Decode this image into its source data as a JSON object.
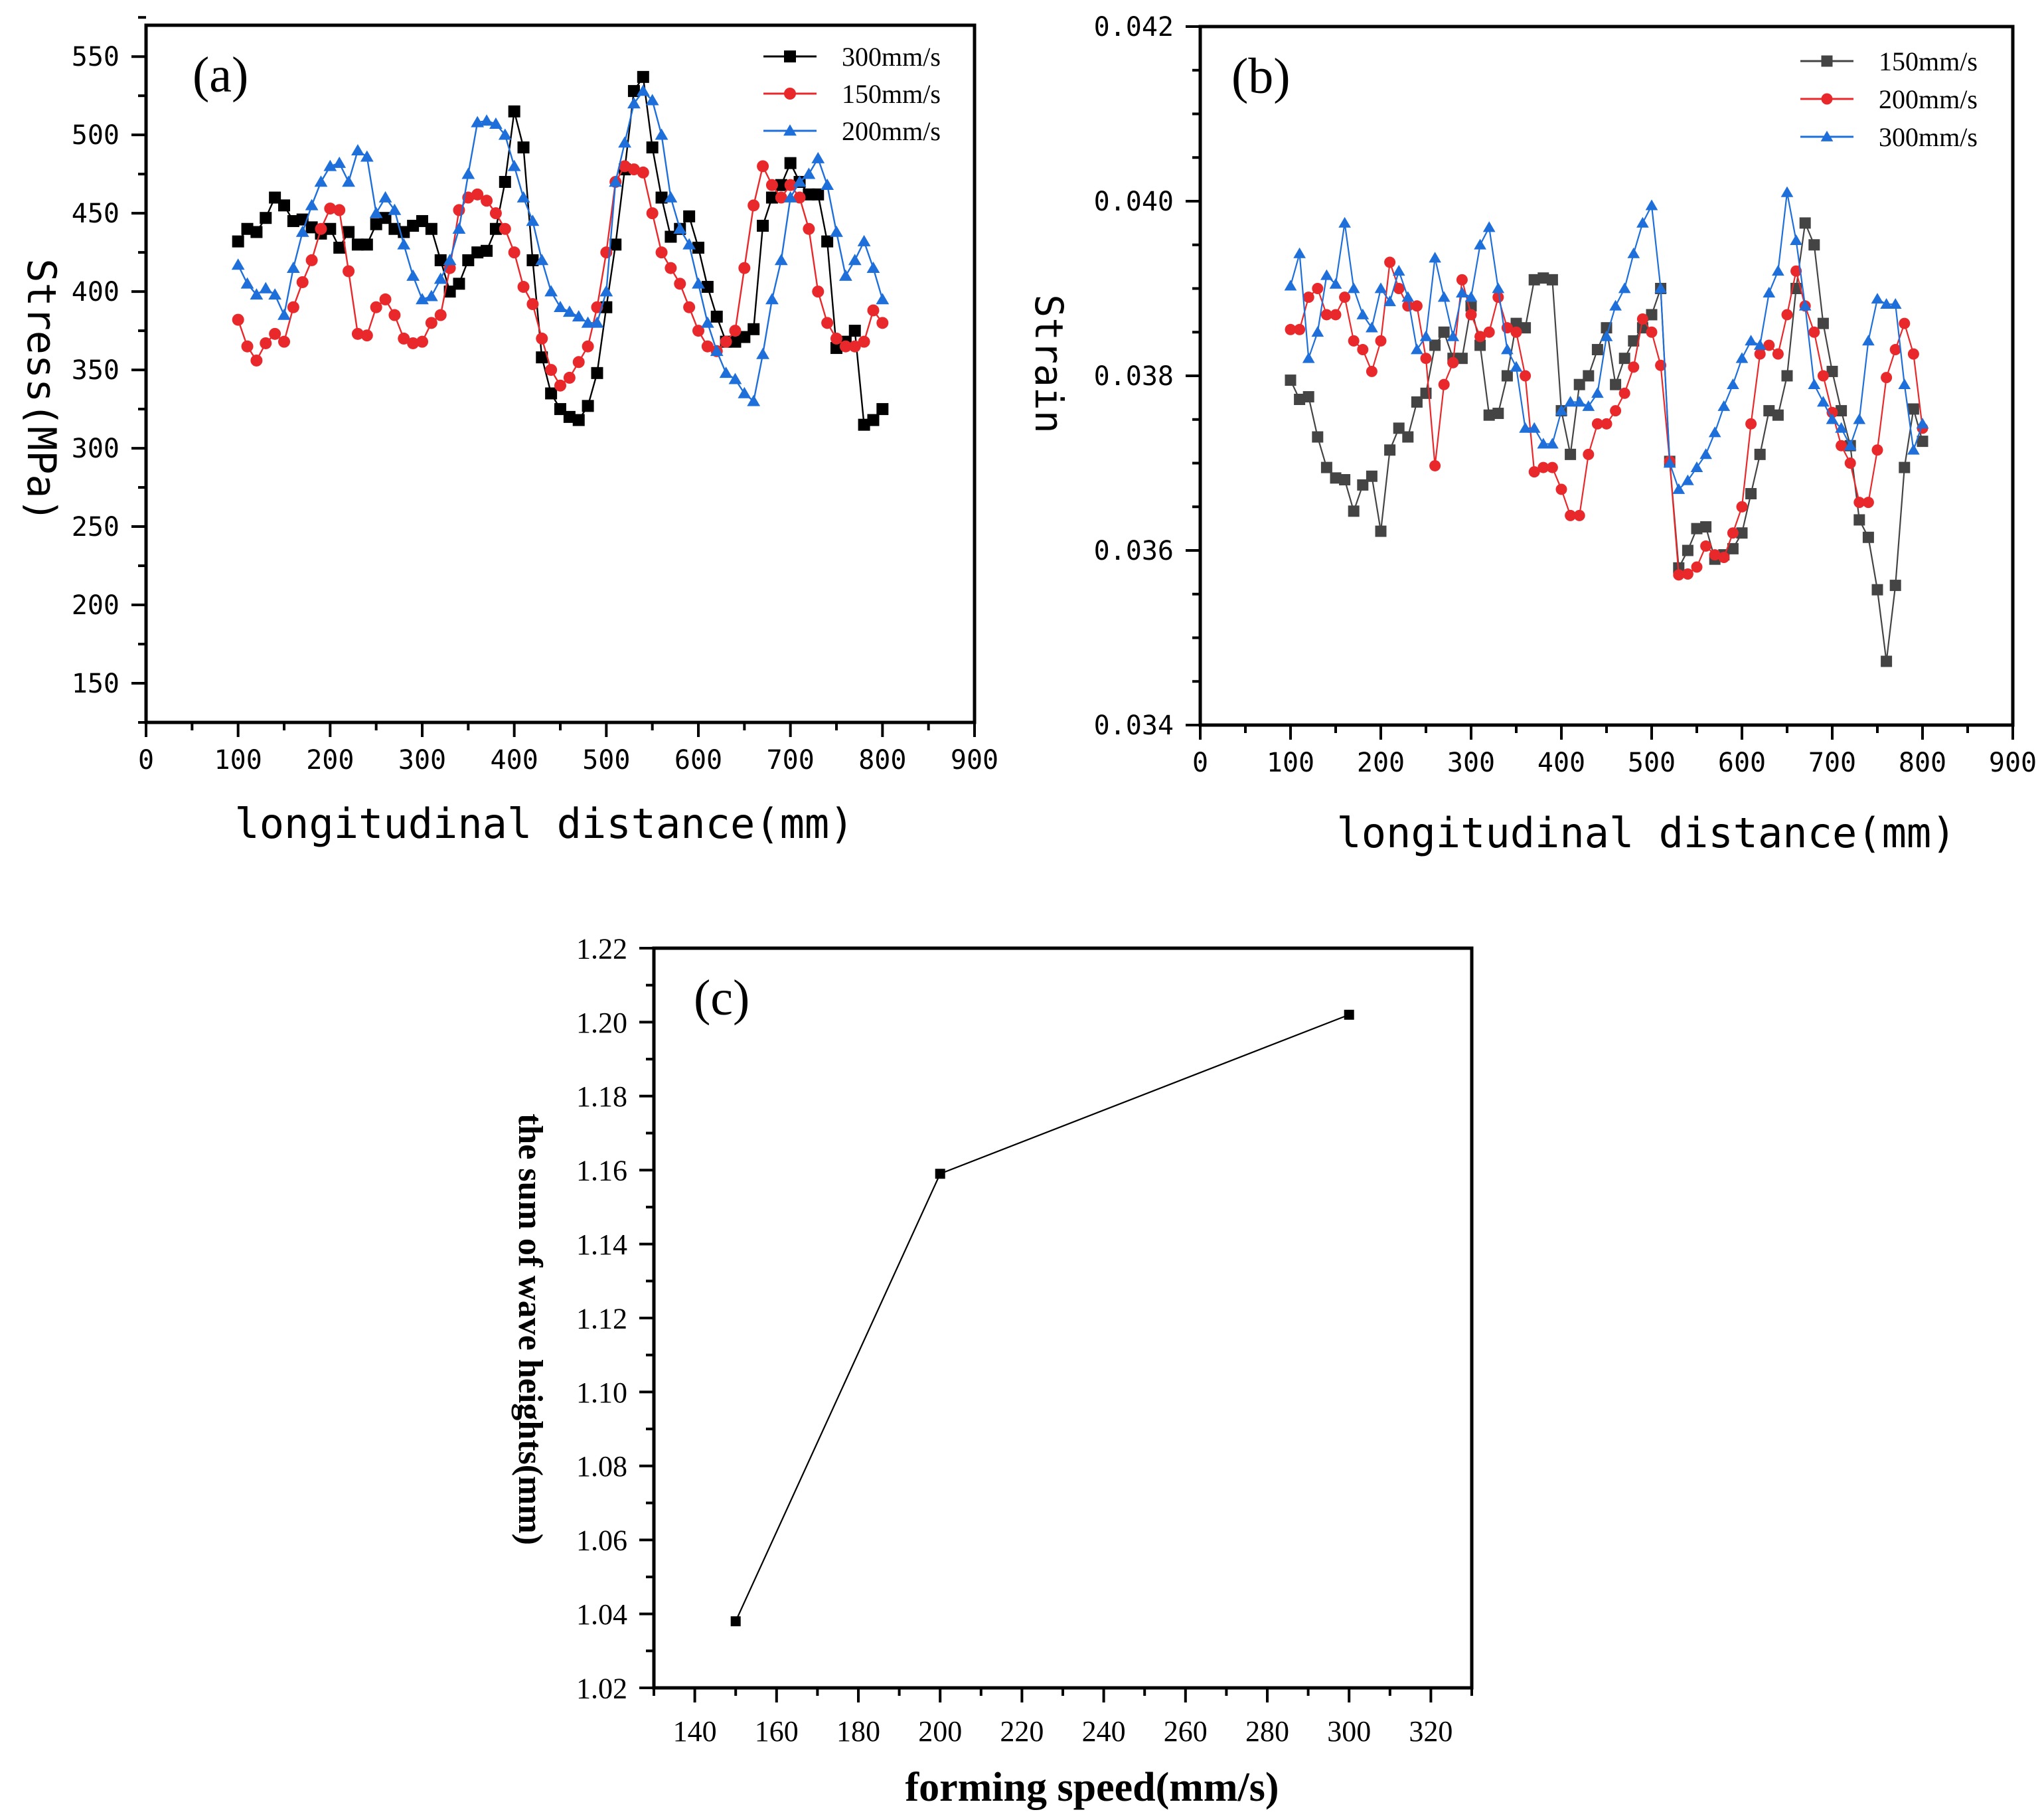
{
  "chart_data": [
    {
      "id": "a",
      "type": "line",
      "panel_label": "(a)",
      "title": "",
      "xlabel": "longitudinal distance(mm)",
      "ylabel": "Stress(MPa)",
      "xlim": [
        0,
        900
      ],
      "ylim": [
        125,
        570
      ],
      "x_ticks": [
        "0",
        "100",
        "200",
        "300",
        "400",
        "500",
        "600",
        "700",
        "800",
        "900"
      ],
      "y_ticks": [
        "150",
        "200",
        "250",
        "300",
        "350",
        "400",
        "450",
        "500",
        "550"
      ],
      "legend_position": "top-right",
      "x": [
        100,
        110,
        120,
        130,
        140,
        150,
        160,
        170,
        180,
        190,
        200,
        210,
        220,
        230,
        240,
        250,
        260,
        270,
        280,
        290,
        300,
        310,
        320,
        330,
        340,
        350,
        360,
        370,
        380,
        390,
        400,
        410,
        420,
        430,
        440,
        450,
        460,
        470,
        480,
        490,
        500,
        510,
        520,
        530,
        540,
        550,
        560,
        570,
        580,
        590,
        600,
        610,
        620,
        630,
        640,
        650,
        660,
        670,
        680,
        690,
        700,
        710,
        720,
        730,
        740,
        750,
        760,
        770,
        780,
        790,
        800
      ],
      "series": [
        {
          "name": "300mm/s",
          "color": "#000000",
          "marker": "square",
          "values": [
            432,
            440,
            438,
            447,
            460,
            455,
            445,
            446,
            441,
            437,
            440,
            428,
            438,
            430,
            430,
            443,
            447,
            440,
            438,
            442,
            445,
            440,
            420,
            400,
            405,
            420,
            425,
            426,
            440,
            470,
            515,
            492,
            420,
            358,
            335,
            325,
            320,
            318,
            327,
            348,
            390,
            430,
            478,
            528,
            537,
            492,
            460,
            435,
            440,
            448,
            428,
            403,
            384,
            368,
            368,
            371,
            376,
            442,
            460,
            468,
            482,
            470,
            462,
            462,
            432,
            364,
            368,
            375,
            315,
            318,
            325
          ]
        },
        {
          "name": "150mm/s",
          "color": "#e8282a",
          "marker": "circle",
          "values": [
            382,
            365,
            356,
            367,
            373,
            368,
            390,
            406,
            420,
            440,
            453,
            452,
            413,
            373,
            372,
            390,
            395,
            385,
            370,
            367,
            368,
            380,
            385,
            415,
            452,
            460,
            462,
            458,
            450,
            440,
            425,
            403,
            392,
            370,
            350,
            340,
            345,
            355,
            365,
            390,
            425,
            470,
            480,
            478,
            476,
            450,
            425,
            415,
            405,
            390,
            375,
            365,
            362,
            368,
            375,
            415,
            455,
            480,
            468,
            460,
            468,
            460,
            440,
            400,
            380,
            370,
            365,
            365,
            368,
            388,
            380
          ]
        },
        {
          "name": "200mm/s",
          "color": "#1e6fd9",
          "marker": "triangle",
          "values": [
            417,
            405,
            398,
            402,
            398,
            385,
            415,
            438,
            455,
            470,
            480,
            482,
            470,
            490,
            486,
            450,
            460,
            452,
            430,
            410,
            395,
            397,
            408,
            420,
            440,
            475,
            508,
            509,
            507,
            500,
            480,
            460,
            445,
            420,
            400,
            390,
            387,
            384,
            380,
            380,
            400,
            470,
            495,
            520,
            528,
            522,
            500,
            460,
            440,
            430,
            405,
            380,
            362,
            348,
            344,
            335,
            330,
            360,
            395,
            420,
            460,
            470,
            475,
            485,
            468,
            438,
            410,
            420,
            432,
            415,
            395
          ]
        }
      ]
    },
    {
      "id": "b",
      "type": "line",
      "panel_label": "(b)",
      "title": "",
      "xlabel": "longitudinal distance(mm)",
      "ylabel": "Strain",
      "xlim": [
        0,
        900
      ],
      "ylim": [
        0.034,
        0.042
      ],
      "x_ticks": [
        "0",
        "100",
        "200",
        "300",
        "400",
        "500",
        "600",
        "700",
        "800",
        "900"
      ],
      "y_ticks": [
        "0.034",
        "0.036",
        "0.038",
        "0.040",
        "0.042"
      ],
      "legend_position": "top-right",
      "x": [
        100,
        110,
        120,
        130,
        140,
        150,
        160,
        170,
        180,
        190,
        200,
        210,
        220,
        230,
        240,
        250,
        260,
        270,
        280,
        290,
        300,
        310,
        320,
        330,
        340,
        350,
        360,
        370,
        380,
        390,
        400,
        410,
        420,
        430,
        440,
        450,
        460,
        470,
        480,
        490,
        500,
        510,
        520,
        530,
        540,
        550,
        560,
        570,
        580,
        590,
        600,
        610,
        620,
        630,
        640,
        650,
        660,
        670,
        680,
        690,
        700,
        710,
        720,
        730,
        740,
        750,
        760,
        770,
        780,
        790,
        800
      ],
      "series": [
        {
          "name": "150mm/s",
          "color": "#444444",
          "marker": "square",
          "values": [
            0.03795,
            0.03773,
            0.03776,
            0.0373,
            0.03695,
            0.03683,
            0.03681,
            0.03645,
            0.03675,
            0.03685,
            0.03622,
            0.03715,
            0.0374,
            0.0373,
            0.0377,
            0.0378,
            0.03835,
            0.0385,
            0.0382,
            0.0382,
            0.0388,
            0.03835,
            0.03755,
            0.03757,
            0.038,
            0.0386,
            0.03855,
            0.0391,
            0.03912,
            0.0391,
            0.0376,
            0.0371,
            0.0379,
            0.038,
            0.0383,
            0.03855,
            0.0379,
            0.0382,
            0.0384,
            0.03855,
            0.0387,
            0.039,
            0.03702,
            0.0358,
            0.036,
            0.03625,
            0.03627,
            0.0359,
            0.03595,
            0.03602,
            0.0362,
            0.03665,
            0.0371,
            0.0376,
            0.03755,
            0.038,
            0.039,
            0.03975,
            0.0395,
            0.0386,
            0.03805,
            0.0376,
            0.0372,
            0.03635,
            0.03615,
            0.03555,
            0.03473,
            0.0356,
            0.03695,
            0.03762,
            0.03725
          ]
        },
        {
          "name": "200mm/s",
          "color": "#e8282a",
          "marker": "circle",
          "values": [
            0.03853,
            0.03853,
            0.0389,
            0.039,
            0.0387,
            0.0387,
            0.0389,
            0.0384,
            0.0383,
            0.03805,
            0.0384,
            0.0393,
            0.039,
            0.0388,
            0.0388,
            0.0382,
            0.03697,
            0.0379,
            0.03815,
            0.0391,
            0.0387,
            0.03845,
            0.0385,
            0.0389,
            0.03855,
            0.0385,
            0.038,
            0.0369,
            0.03695,
            0.03695,
            0.0367,
            0.0364,
            0.0364,
            0.0371,
            0.03745,
            0.03745,
            0.0376,
            0.0378,
            0.0381,
            0.03865,
            0.0385,
            0.03812,
            0.03702,
            0.03572,
            0.03573,
            0.03581,
            0.03605,
            0.03595,
            0.03592,
            0.0362,
            0.0365,
            0.03745,
            0.03825,
            0.03835,
            0.03825,
            0.0387,
            0.0392,
            0.0388,
            0.0385,
            0.038,
            0.03758,
            0.0372,
            0.037,
            0.03655,
            0.03655,
            0.03715,
            0.03798,
            0.0383,
            0.0386,
            0.03825,
            0.0374
          ]
        },
        {
          "name": "300mm/s",
          "color": "#1e6fd9",
          "marker": "triangle",
          "values": [
            0.03903,
            0.0394,
            0.0382,
            0.0385,
            0.03915,
            0.03905,
            0.03975,
            0.039,
            0.0387,
            0.03855,
            0.039,
            0.03885,
            0.0392,
            0.0389,
            0.0383,
            0.03845,
            0.03935,
            0.0389,
            0.03845,
            0.03895,
            0.0389,
            0.0395,
            0.0397,
            0.039,
            0.0383,
            0.0381,
            0.0374,
            0.0374,
            0.03722,
            0.03722,
            0.0376,
            0.0377,
            0.0377,
            0.03765,
            0.0378,
            0.03845,
            0.0388,
            0.039,
            0.0394,
            0.03975,
            0.03995,
            0.039,
            0.037,
            0.0367,
            0.0368,
            0.03695,
            0.0371,
            0.03735,
            0.03765,
            0.0379,
            0.0382,
            0.0384,
            0.03835,
            0.03895,
            0.0392,
            0.0401,
            0.03955,
            0.0388,
            0.0379,
            0.0377,
            0.0375,
            0.0374,
            0.0372,
            0.0375,
            0.0384,
            0.03888,
            0.03882,
            0.03882,
            0.0379,
            0.03715,
            0.03745
          ]
        }
      ]
    },
    {
      "id": "c",
      "type": "line",
      "panel_label": "(c)",
      "title": "",
      "xlabel": "forming speed(mm/s)",
      "ylabel": "the sum of wave heights(mm)",
      "xlim": [
        130,
        330
      ],
      "ylim": [
        1.02,
        1.22
      ],
      "x_ticks": [
        "140",
        "160",
        "180",
        "200",
        "220",
        "240",
        "260",
        "280",
        "300",
        "320"
      ],
      "y_ticks": [
        "1.02",
        "1.04",
        "1.06",
        "1.08",
        "1.10",
        "1.12",
        "1.14",
        "1.16",
        "1.18",
        "1.20",
        "1.22"
      ],
      "legend_position": "none",
      "x": [
        150,
        200,
        300
      ],
      "series": [
        {
          "name": "sum of wave heights",
          "color": "#000000",
          "marker": "square",
          "values": [
            1.038,
            1.159,
            1.202
          ]
        }
      ]
    }
  ]
}
